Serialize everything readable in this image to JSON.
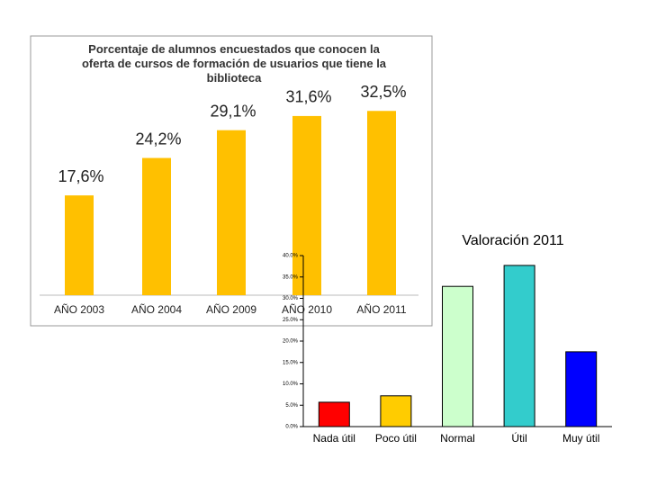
{
  "chart_data": [
    {
      "type": "bar",
      "title": "Porcentaje de alumnos encuestados que conocen la oferta de cursos de formación de usuarios que tiene la biblioteca",
      "categories": [
        "AÑO 2003",
        "AÑO 2004",
        "AÑO 2009",
        "AÑO 2010",
        "AÑO 2011"
      ],
      "values": [
        17.6,
        24.2,
        29.1,
        31.6,
        32.5
      ],
      "value_labels": [
        "17,6%",
        "24,2%",
        "29,1%",
        "31,6%",
        "32,5%"
      ],
      "color": "#ffc000"
    },
    {
      "type": "bar",
      "title": "Valoración 2011",
      "categories": [
        "Nada útil",
        "Poco útil",
        "Normal",
        "Útil",
        "Muy útil"
      ],
      "values": [
        5.7,
        7.2,
        32.8,
        37.7,
        17.5
      ],
      "colors": [
        "#ff0000",
        "#ffcc00",
        "#ccffcc",
        "#33cccc",
        "#0000ff"
      ],
      "ylim": [
        0,
        40
      ],
      "yticks": [
        {
          "value": 0,
          "label": "0.0%"
        },
        {
          "value": 5,
          "label": "5.0%"
        },
        {
          "value": 10,
          "label": "10.0%"
        },
        {
          "value": 15,
          "label": "15.0%"
        },
        {
          "value": 20,
          "label": "20.0%"
        },
        {
          "value": 25,
          "label": "25.0%"
        },
        {
          "value": 30,
          "label": "30.0%"
        },
        {
          "value": 35,
          "label": "35.0%"
        },
        {
          "value": 40,
          "label": "40.0%"
        }
      ]
    }
  ]
}
